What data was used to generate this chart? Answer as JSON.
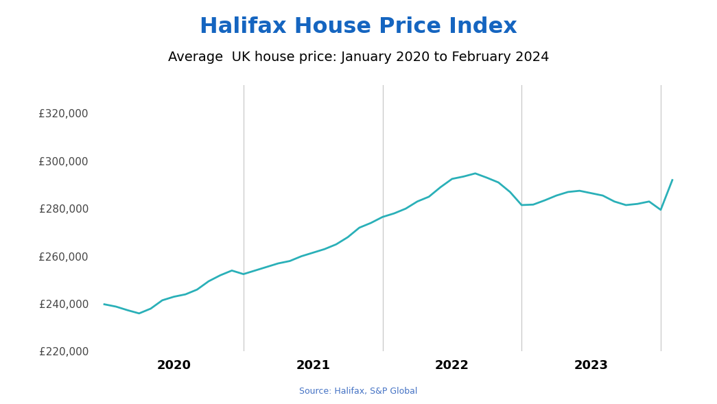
{
  "title": "Halifax House Price Index",
  "subtitle": "Average  UK house price: January 2020 to February 2024",
  "source": "Source: Halifax, S&P Global",
  "title_color": "#1565c0",
  "subtitle_color": "#000000",
  "source_color": "#4472c4",
  "line_color": "#2ab0b8",
  "background_color": "#ffffff",
  "ylim": [
    220000,
    332000
  ],
  "yticks": [
    220000,
    240000,
    260000,
    280000,
    300000,
    320000
  ],
  "year_lines": [
    2021,
    2022,
    2023,
    2024
  ],
  "values": [
    239818,
    238855,
    237345,
    236000,
    238000,
    241500,
    243000,
    244000,
    246000,
    249500,
    252000,
    254000,
    252500,
    254000,
    255500,
    257000,
    258000,
    260000,
    261500,
    263000,
    265000,
    268000,
    272000,
    274000,
    276500,
    278000,
    280000,
    283000,
    285000,
    289000,
    292500,
    293500,
    294800,
    293000,
    291000,
    287000,
    281500,
    281700,
    283500,
    285500,
    287000,
    287500,
    286500,
    285500,
    283000,
    281500,
    282000,
    283000,
    279500,
    292000
  ],
  "line_width": 2.0,
  "xlim_start": 2019.92,
  "xlim_end": 2024.25
}
